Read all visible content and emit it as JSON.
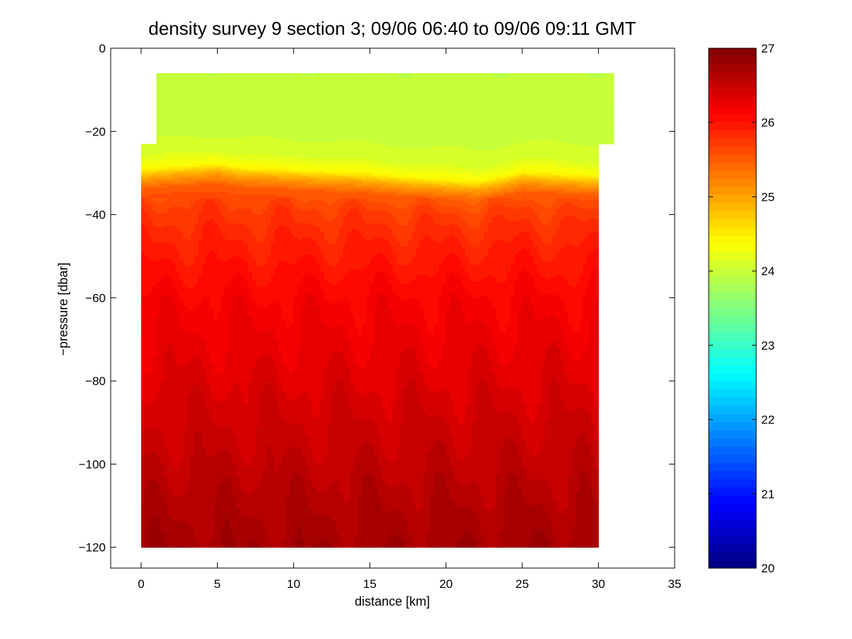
{
  "chart_data": {
    "type": "heatmap",
    "title": "density survey 9 section 3; 09/06 06:40 to 09/06 09:11 GMT",
    "xlabel": "distance [km]",
    "ylabel": "−pressure [dbar]",
    "xlim": [
      -2,
      35
    ],
    "ylim": [
      -125,
      0
    ],
    "x_ticks": [
      0,
      5,
      10,
      15,
      20,
      25,
      30,
      35
    ],
    "y_ticks": [
      0,
      -20,
      -40,
      -60,
      -80,
      -100,
      -120
    ],
    "x_tick_labels": [
      "0",
      "5",
      "10",
      "15",
      "20",
      "25",
      "30",
      "35"
    ],
    "y_tick_labels": [
      "0",
      "−20",
      "−40",
      "−60",
      "−80",
      "−100",
      "−120"
    ],
    "colorbar": {
      "range": [
        20,
        27
      ],
      "ticks": [
        20,
        21,
        22,
        23,
        24,
        25,
        26,
        27
      ],
      "tick_labels": [
        "20",
        "21",
        "22",
        "23",
        "24",
        "25",
        "26",
        "27"
      ],
      "colormap": "jet"
    },
    "grid": false,
    "data_extent": {
      "x": [
        0,
        30
      ],
      "pressure": [
        -120,
        -6
      ],
      "surface_steps": [
        {
          "x": [
            0,
            1
          ],
          "top": -23
        },
        {
          "x": [
            1,
            30.8
          ],
          "top": -6
        },
        {
          "x": [
            30,
            30.8
          ],
          "bottom": -23
        }
      ]
    },
    "density_profile": {
      "pressure": [
        -6,
        -20,
        -26,
        -29,
        -31,
        -34,
        -38,
        -44,
        -52,
        -60,
        -70,
        -80,
        -90,
        -100,
        -110,
        -120
      ],
      "value": [
        23.95,
        24.0,
        24.15,
        24.4,
        24.95,
        25.5,
        25.7,
        25.85,
        26.0,
        26.15,
        26.25,
        26.35,
        26.45,
        26.55,
        26.65,
        26.75
      ]
    },
    "thermocline_depth": {
      "x": [
        0,
        5,
        6.5,
        10,
        15,
        20,
        22,
        25,
        27,
        30
      ],
      "pressure": [
        -30,
        -28.5,
        -29.5,
        -30,
        -31,
        -32.5,
        -33,
        -30.5,
        -31,
        -31.5
      ]
    }
  }
}
